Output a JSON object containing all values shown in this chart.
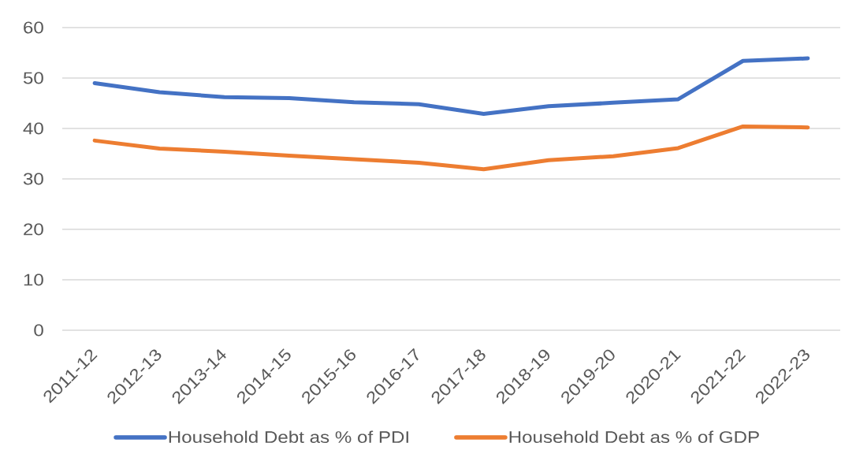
{
  "chart_data": {
    "type": "line",
    "categories": [
      "2011-12",
      "2012-13",
      "2013-14",
      "2014-15",
      "2015-16",
      "2016-17",
      "2017-18",
      "2018-19",
      "2019-20",
      "2020-21",
      "2021-22",
      "2022-23"
    ],
    "series": [
      {
        "name": "Household Debt as % of PDI",
        "color": "#4472c4",
        "values": [
          49.0,
          47.2,
          46.2,
          46.0,
          45.2,
          44.8,
          42.9,
          44.4,
          45.1,
          45.8,
          53.4,
          53.9
        ]
      },
      {
        "name": "Household Debt as % of GDP",
        "color": "#ed7d31",
        "values": [
          37.6,
          36.0,
          35.4,
          34.6,
          33.9,
          33.2,
          31.9,
          33.7,
          34.5,
          36.1,
          40.4,
          40.2
        ]
      }
    ],
    "ylim": [
      0,
      60
    ],
    "yticks": [
      0,
      10,
      20,
      30,
      40,
      50,
      60
    ],
    "grid": "y",
    "legend": "bottom",
    "marker": "none",
    "line_style": "solid"
  }
}
